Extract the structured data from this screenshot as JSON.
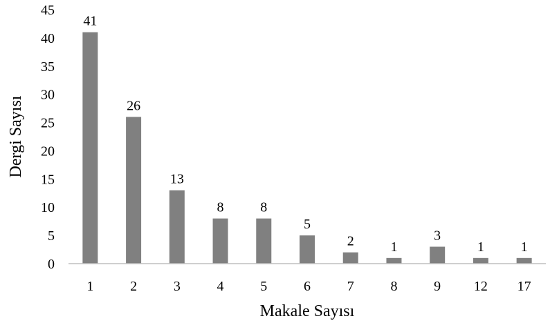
{
  "chart_data": {
    "type": "bar",
    "categories": [
      "1",
      "2",
      "3",
      "4",
      "5",
      "6",
      "7",
      "8",
      "9",
      "12",
      "17"
    ],
    "values": [
      41,
      26,
      13,
      8,
      8,
      5,
      2,
      1,
      3,
      1,
      1
    ],
    "data_labels": [
      "41",
      "26",
      "13",
      "8",
      "8",
      "5",
      "2",
      "1",
      "3",
      "1",
      "1"
    ],
    "title": "",
    "xlabel": "Makale Sayısı",
    "ylabel": "Dergi Sayısı",
    "ylim": [
      0,
      45
    ],
    "yticks": [
      "0",
      "5",
      "10",
      "15",
      "20",
      "25",
      "30",
      "35",
      "40",
      "45"
    ],
    "grid": false,
    "legend": "none",
    "bar_color": "#808080"
  }
}
